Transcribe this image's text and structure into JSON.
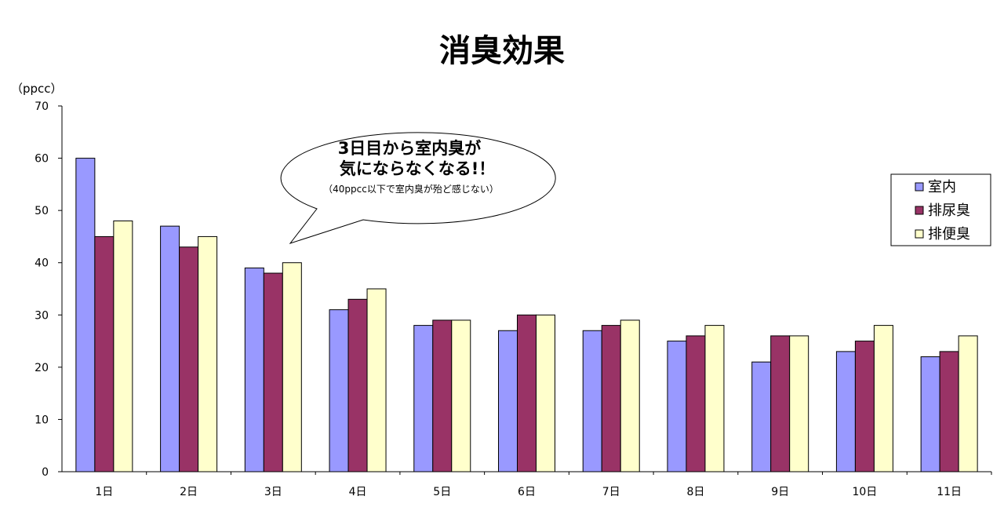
{
  "chart_data": {
    "type": "bar",
    "title": "消臭効果",
    "ylabel": "（ppcc）",
    "xlabel": "",
    "ylim": [
      0,
      70
    ],
    "yticks": [
      0,
      10,
      20,
      30,
      40,
      50,
      60,
      70
    ],
    "categories": [
      "1日",
      "2日",
      "3日",
      "4日",
      "5日",
      "6日",
      "7日",
      "8日",
      "9日",
      "10日",
      "11日"
    ],
    "series": [
      {
        "name": "室内",
        "color": "#9999ff",
        "values": [
          60,
          47,
          39,
          31,
          28,
          27,
          27,
          25,
          21,
          23,
          22
        ]
      },
      {
        "name": "排尿臭",
        "color": "#993366",
        "values": [
          45,
          43,
          38,
          33,
          29,
          30,
          28,
          26,
          26,
          25,
          23
        ]
      },
      {
        "name": "排便臭",
        "color": "#ffffcc",
        "values": [
          48,
          45,
          40,
          35,
          29,
          30,
          29,
          28,
          26,
          28,
          26
        ]
      }
    ],
    "legend": "right",
    "grid": false,
    "annotation": {
      "line1": "3日目から室内臭が",
      "line2": "気にならなくなる!！",
      "note": "（40ppcc以下で室内臭が殆ど感じない）"
    }
  }
}
